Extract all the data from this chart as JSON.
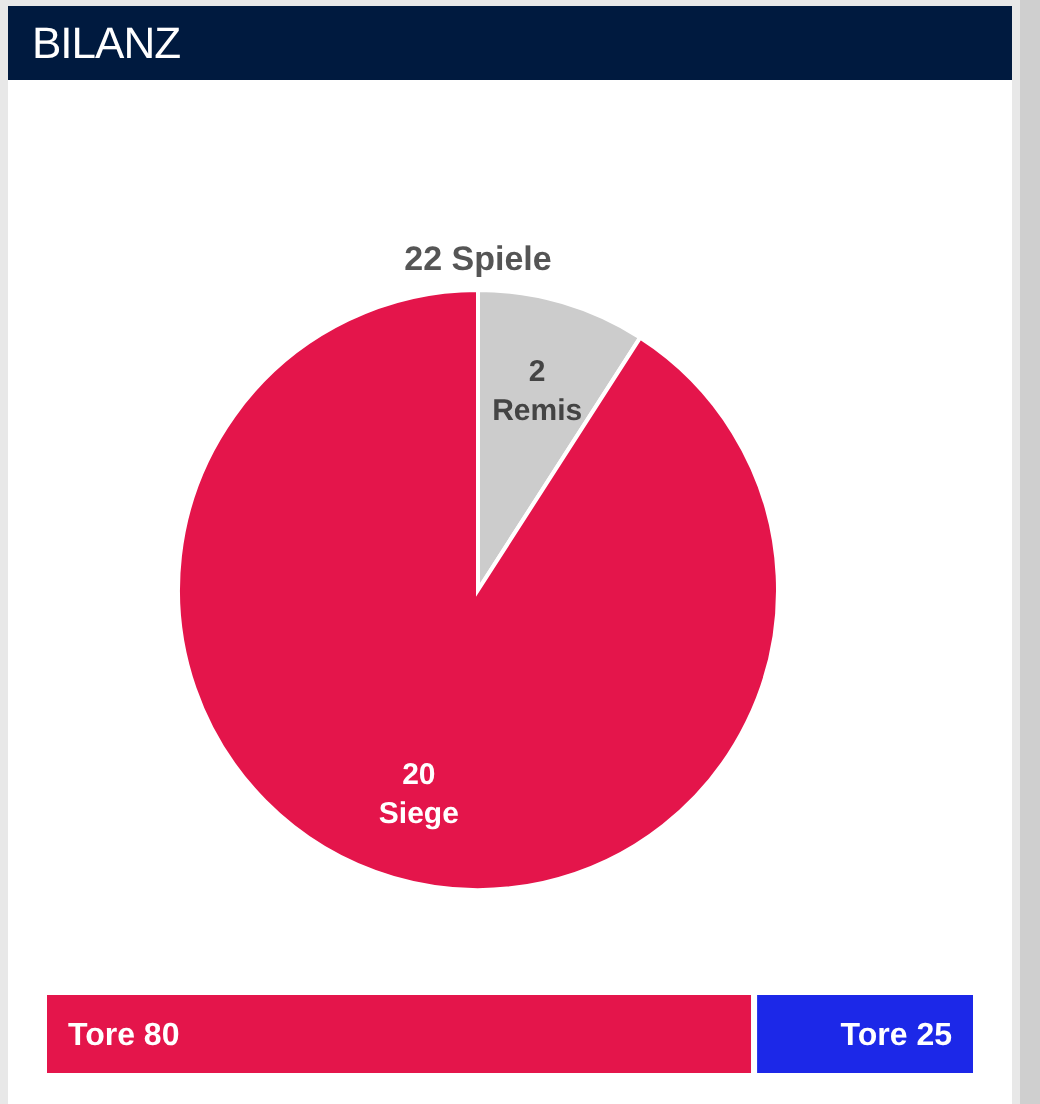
{
  "chart_data": [
    {
      "type": "pie",
      "title": "BILANZ",
      "subtitle": "22 Spiele",
      "categories": [
        "Remis",
        "Siege"
      ],
      "values": [
        2,
        20
      ],
      "colors": [
        "#cccccc",
        "#e4154b"
      ],
      "data_labels": true
    },
    {
      "type": "bar",
      "stacked": true,
      "orientation": "horizontal",
      "categories": [
        null
      ],
      "series": [
        {
          "color": "#e4154b",
          "values": [
            80
          ],
          "value_labels": [
            "Tore 80"
          ]
        },
        {
          "color": "#1c28e8",
          "values": [
            25
          ],
          "value_labels": [
            "Tore 25"
          ]
        }
      ]
    }
  ]
}
